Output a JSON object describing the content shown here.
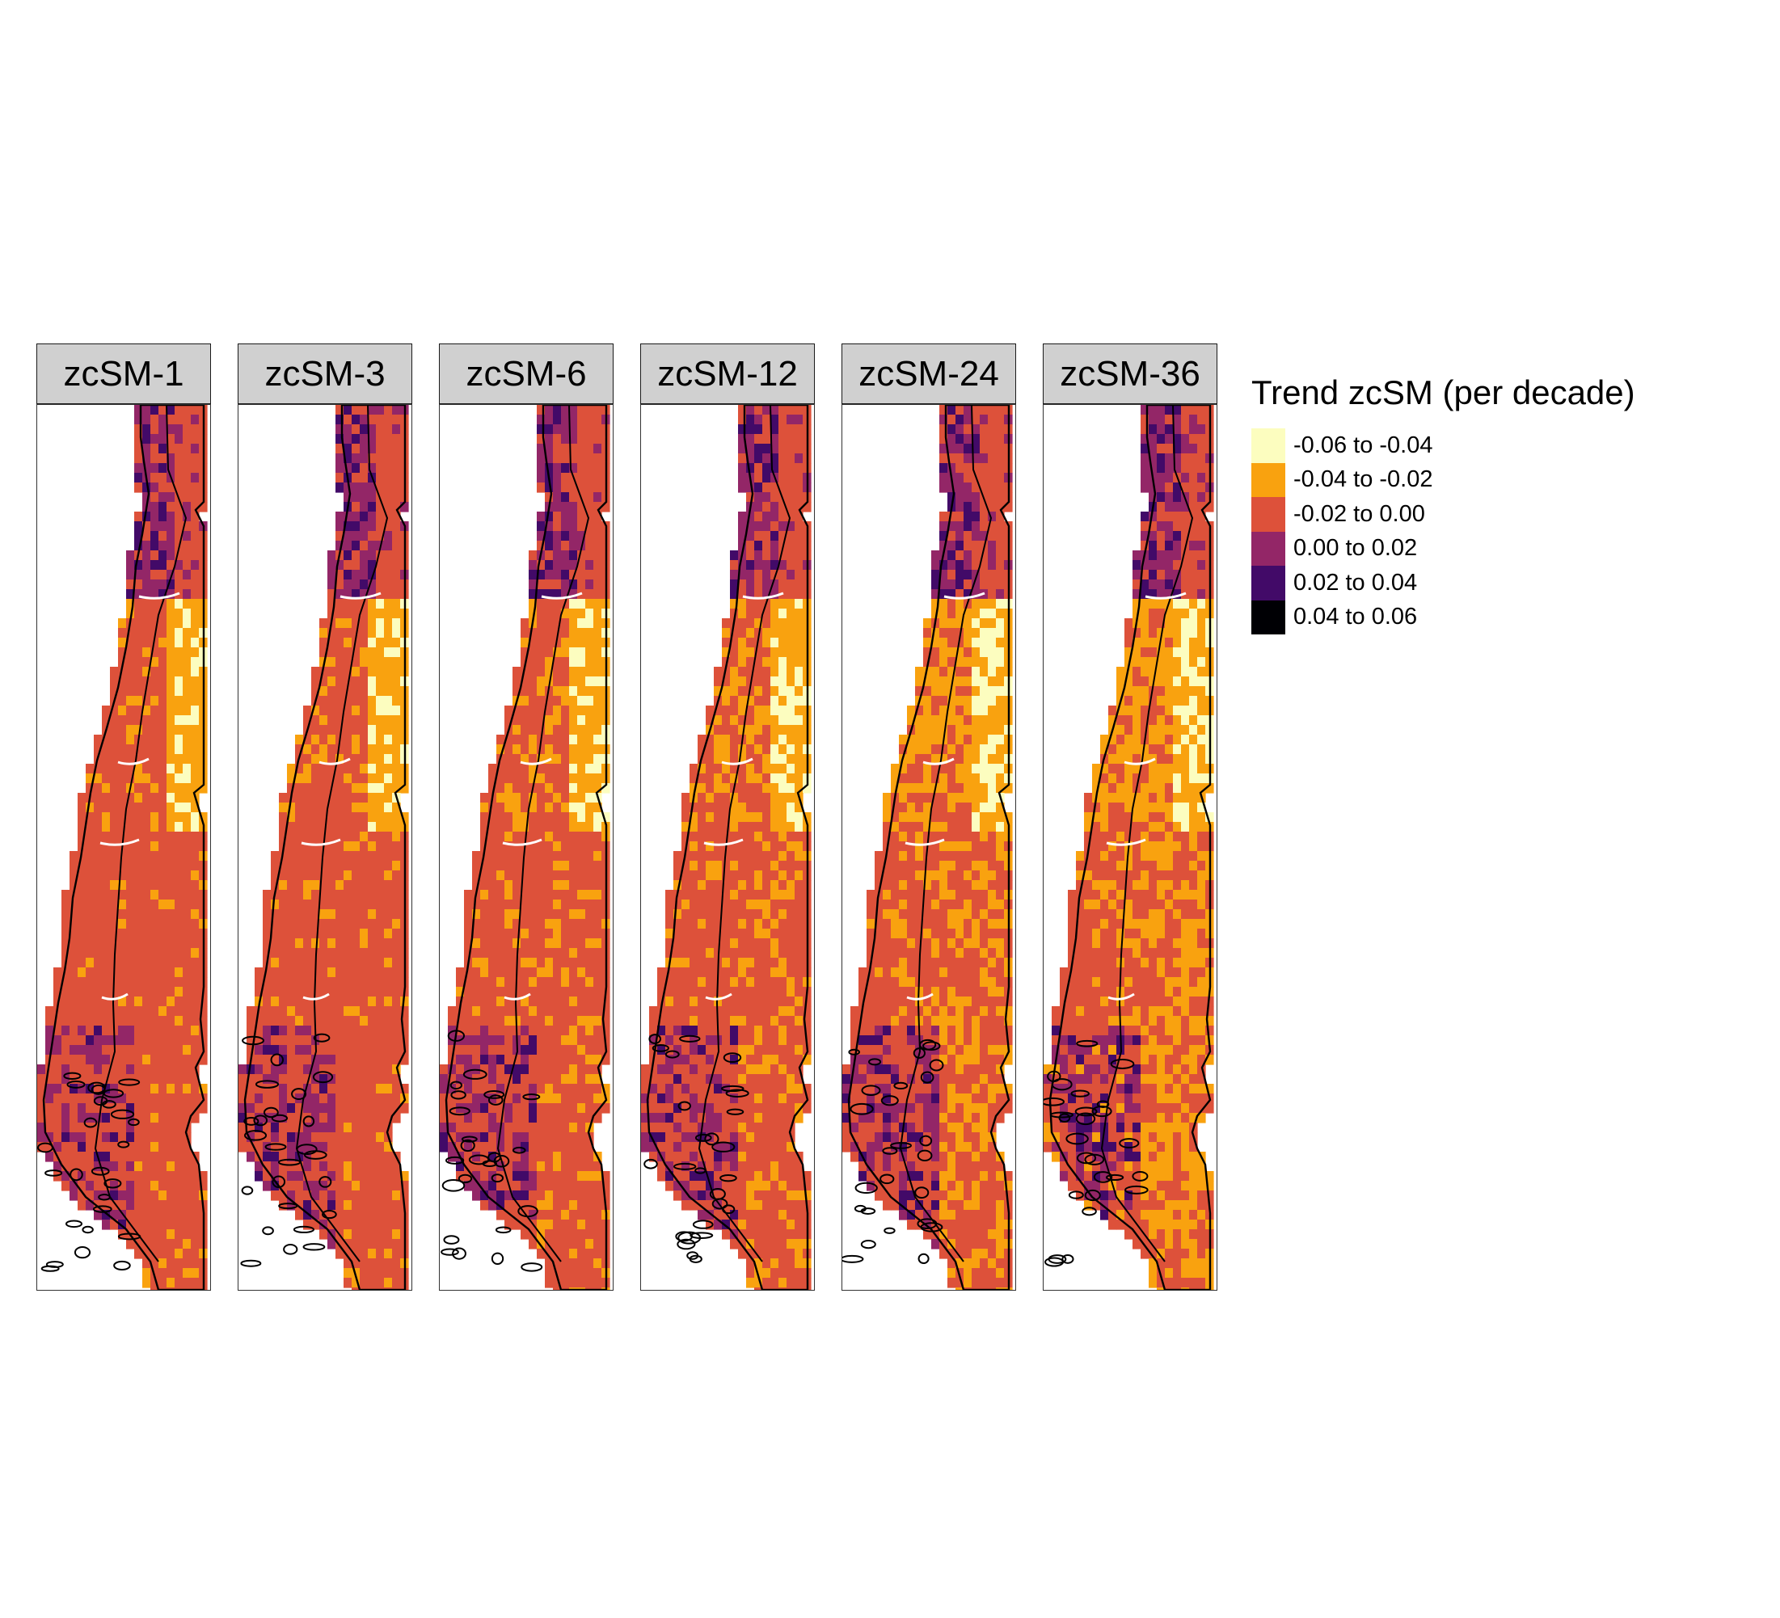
{
  "colors": {
    "c1": "#fcfdbf",
    "c2": "#f9a20f",
    "c3": "#dd513a",
    "c4": "#932667",
    "c5": "#420a68",
    "c6": "#000004",
    "outline": "#000000",
    "region_line": "#ffffff"
  },
  "panels": [
    {
      "title": "zcSM-1",
      "severity": 0.15
    },
    {
      "title": "zcSM-3",
      "severity": 0.25
    },
    {
      "title": "zcSM-6",
      "severity": 0.35
    },
    {
      "title": "zcSM-12",
      "severity": 0.45
    },
    {
      "title": "zcSM-24",
      "severity": 0.75
    },
    {
      "title": "zcSM-36",
      "severity": 0.95
    }
  ],
  "legend": {
    "title": "Trend zcSM (per decade)",
    "items": [
      {
        "label": "-0.06 to -0.04",
        "color": "#fcfdbf"
      },
      {
        "label": "-0.04 to -0.02",
        "color": "#f9a20f"
      },
      {
        "label": "-0.02 to 0.00",
        "color": "#dd513a"
      },
      {
        "label": "0.00 to 0.02",
        "color": "#932667"
      },
      {
        "label": "0.02 to 0.04",
        "color": "#420a68"
      },
      {
        "label": "0.04 to 0.06",
        "color": "#000004"
      }
    ]
  }
}
